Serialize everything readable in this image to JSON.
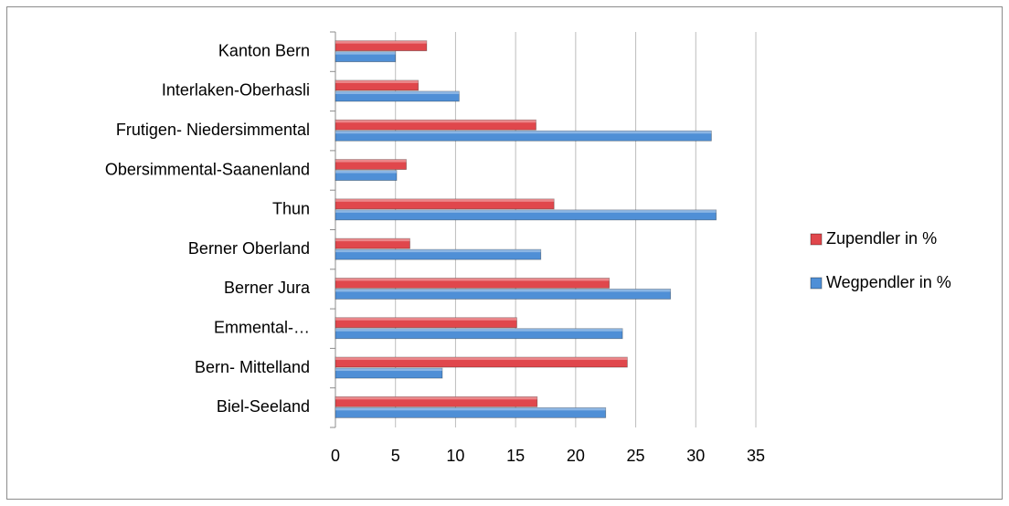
{
  "chart_data": {
    "type": "barh",
    "categories": [
      "Biel-Seeland",
      "Bern- Mittelland",
      "Emmental-…",
      "Berner Jura",
      "Berner Oberland",
      "Thun",
      "Obersimmental-Saanenland",
      "Frutigen- Niedersimmental",
      "Interlaken-Oberhasli",
      "Kanton Bern"
    ],
    "series": [
      {
        "name": "Zupendler in %",
        "color": "#e0474c",
        "values": [
          16.8,
          24.3,
          15.1,
          22.8,
          6.2,
          18.2,
          5.9,
          16.7,
          6.9,
          7.6
        ]
      },
      {
        "name": "Wegpendler in %",
        "color": "#4f8fd6",
        "values": [
          22.5,
          8.9,
          23.9,
          27.9,
          17.1,
          31.7,
          5.1,
          31.3,
          10.3,
          5.0
        ]
      }
    ],
    "xlim": [
      0,
      35
    ],
    "xticks": [
      0,
      5,
      10,
      15,
      20,
      25,
      30,
      35
    ],
    "grid": true,
    "legend": "right"
  }
}
